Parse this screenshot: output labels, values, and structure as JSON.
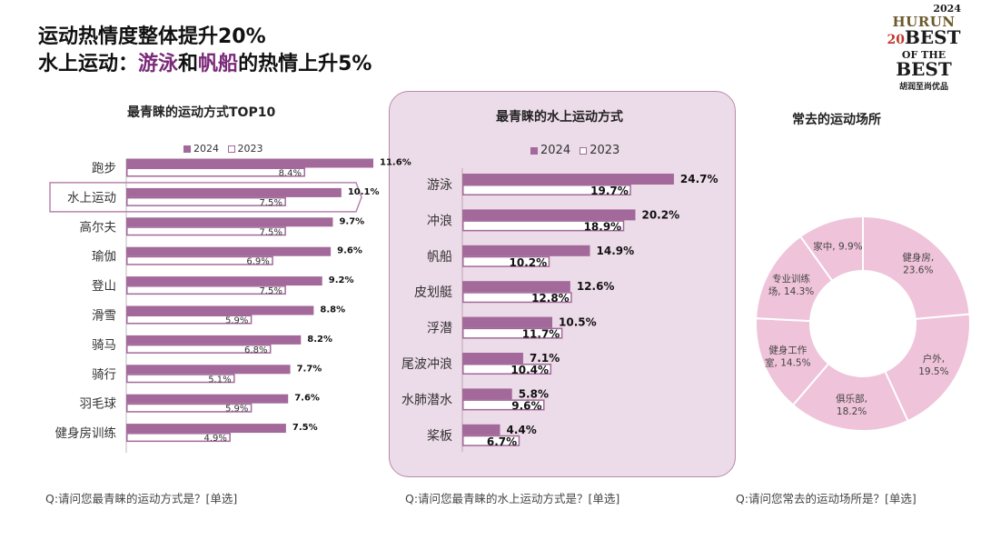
{
  "header": {
    "line1": "运动热情度整体提升20%",
    "line2_a": "水上运动：",
    "line2_b": "游泳",
    "line2_c": "和",
    "line2_d": "帆船",
    "line2_e": "的热情上升5%"
  },
  "logo": {
    "year": "2024",
    "brand": "HURUN",
    "line_best": "BEST",
    "line_of": "OF THE",
    "line_best2": "BEST",
    "cn": "胡润至尚优品",
    "number": "20"
  },
  "colors": {
    "series_2024": "#a2699a",
    "accent": "#7a2a78",
    "panel": "#ecdbe8",
    "donut": "#efc3d9"
  },
  "chart_data": [
    {
      "type": "bar",
      "title": "最青睐的运动方式TOP10",
      "orientation": "horizontal",
      "categories": [
        "跑步",
        "水上运动",
        "高尔夫",
        "瑜伽",
        "登山",
        "滑雪",
        "骑马",
        "骑行",
        "羽毛球",
        "健身房训练"
      ],
      "highlight": "水上运动",
      "series": [
        {
          "name": "2024",
          "values": [
            11.6,
            10.1,
            9.7,
            9.6,
            9.2,
            8.8,
            8.2,
            7.7,
            7.6,
            7.5
          ],
          "labels": [
            "11.6%",
            "10.1%",
            "9.7%",
            "9.6%",
            "9.2%",
            "8.8%",
            "8.2%",
            "7.7%",
            "7.6%",
            "7.5%"
          ]
        },
        {
          "name": "2023",
          "values": [
            8.4,
            7.5,
            7.5,
            6.9,
            7.5,
            5.9,
            6.8,
            5.1,
            5.9,
            4.9
          ],
          "labels": [
            "8.4%",
            "7.5%",
            "7.5%",
            "6.9%",
            "7.5%",
            "5.9%",
            "6.8%",
            "5.1%",
            "5.9%",
            "4.9%"
          ]
        }
      ],
      "note": "Q:请问您最青睐的运动方式是？[单选]"
    },
    {
      "type": "bar",
      "title": "最青睐的水上运动方式",
      "orientation": "horizontal",
      "categories": [
        "游泳",
        "冲浪",
        "帆船",
        "皮划艇",
        "浮潜",
        "尾波冲浪",
        "水肺潜水",
        "桨板"
      ],
      "series": [
        {
          "name": "2024",
          "values": [
            24.7,
            20.2,
            14.9,
            12.6,
            10.5,
            7.1,
            5.8,
            4.4
          ],
          "labels": [
            "24.7%",
            "20.2%",
            "14.9%",
            "12.6%",
            "10.5%",
            "7.1%",
            "5.8%",
            "4.4%"
          ]
        },
        {
          "name": "2023",
          "values": [
            19.7,
            18.9,
            10.2,
            12.8,
            11.7,
            10.4,
            9.6,
            6.7
          ],
          "labels": [
            "19.7%",
            "18.9%",
            "10.2%",
            "12.8%",
            "11.7%",
            "10.4%",
            "9.6%",
            "6.7%"
          ]
        }
      ],
      "note": "Q:请问您最青睐的水上运动方式是？[单选]"
    },
    {
      "type": "pie",
      "title": "常去的运动场所",
      "donut": true,
      "slices": [
        {
          "line1": "健身房,",
          "line2": "23.6%",
          "value": 23.6
        },
        {
          "line1": "户外,",
          "line2": "19.5%",
          "value": 19.5
        },
        {
          "line1": "俱乐部,",
          "line2": "18.2%",
          "value": 18.2
        },
        {
          "line1": "健身工作",
          "line2": "室, 14.5%",
          "value": 14.5
        },
        {
          "line1": "专业训练",
          "line2": "场, 14.3%",
          "value": 14.3
        },
        {
          "line1": "家中, 9.9%",
          "line2": "",
          "value": 9.9
        }
      ],
      "note": "Q:请问您常去的运动场所是？[单选]"
    }
  ]
}
